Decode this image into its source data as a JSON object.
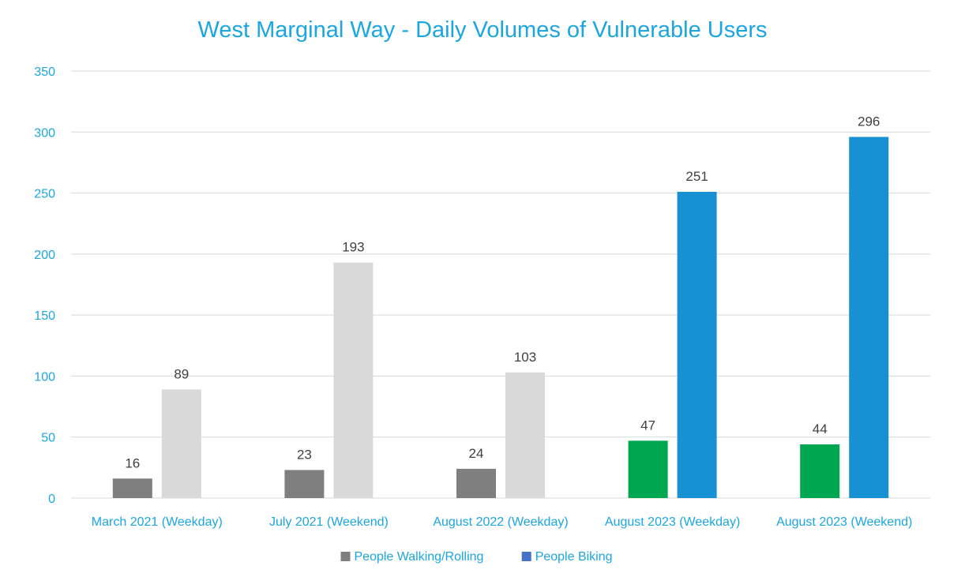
{
  "chart_data": {
    "type": "bar",
    "title": "West Marginal Way - Daily Volumes of Vulnerable Users",
    "xlabel": "",
    "ylabel": "",
    "ylim": [
      0,
      350
    ],
    "yticks": [
      0,
      50,
      100,
      150,
      200,
      250,
      300,
      350
    ],
    "grid": true,
    "legend_position": "bottom",
    "categories": [
      "March 2021 (Weekday)",
      "July 2021 (Weekend)",
      "August 2022 (Weekday)",
      "August 2023 (Weekday)",
      "August 2023 (Weekend)"
    ],
    "series": [
      {
        "name": "People Walking/Rolling",
        "values": [
          16,
          23,
          24,
          47,
          44
        ],
        "colors": [
          "#7f7f7f",
          "#7f7f7f",
          "#7f7f7f",
          "#00a650",
          "#00a650"
        ],
        "legend_color": "#7f7f7f"
      },
      {
        "name": "People Biking",
        "values": [
          89,
          193,
          103,
          251,
          296
        ],
        "colors": [
          "#d9d9d9",
          "#d9d9d9",
          "#d9d9d9",
          "#1791d1",
          "#1791d1"
        ],
        "legend_color": "#4472c4"
      }
    ]
  },
  "colors": {
    "title": "#1ba6e2",
    "axis_text": "#1ba6e2",
    "data_label": "#404040",
    "gridline": "#d9d9d9"
  }
}
